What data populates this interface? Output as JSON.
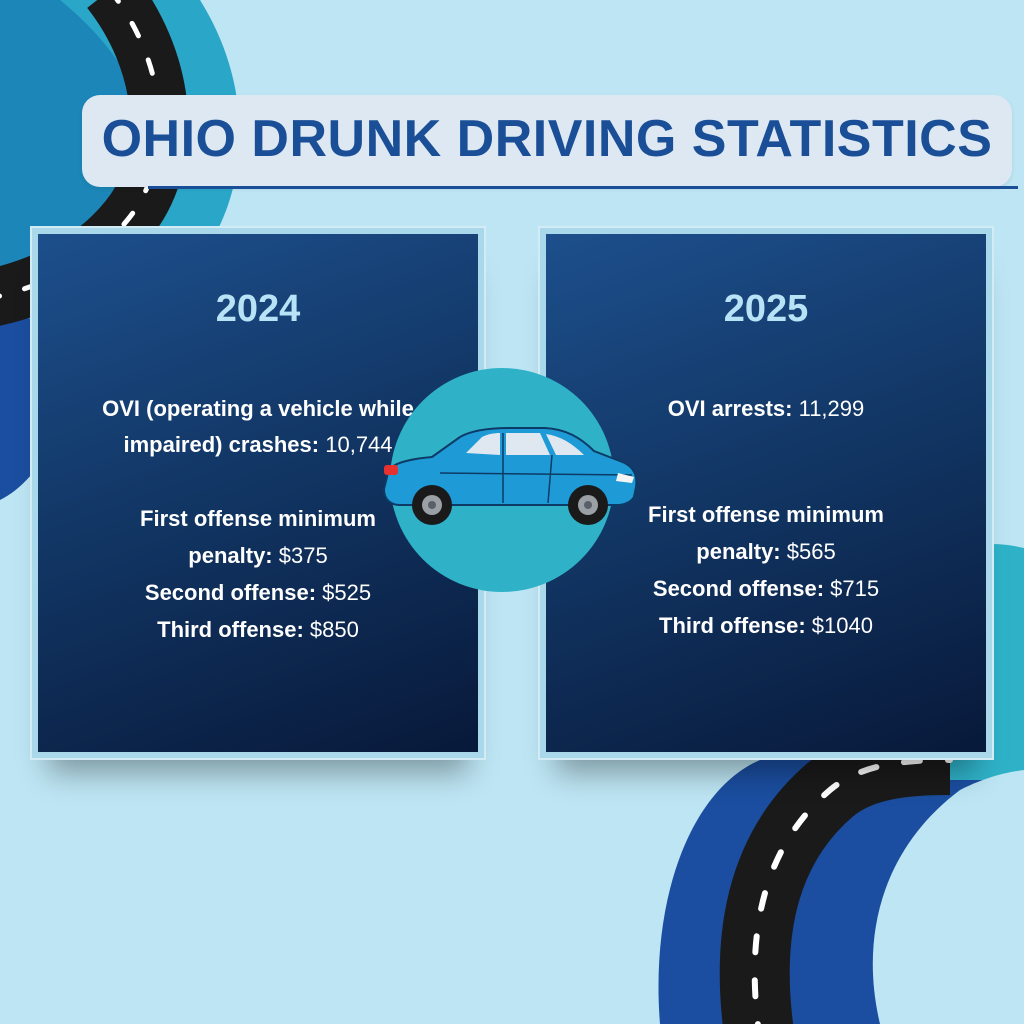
{
  "title": "OHIO DRUNK DRIVING STATISTICS",
  "colors": {
    "background": "#bde5f3",
    "title_text": "#1a4e96",
    "panel_dark": "#0c2448",
    "year_text": "#b8e3f7",
    "circle": "#2fb2c8",
    "car_body": "#1e9bd7",
    "road": "#1a1a1a"
  },
  "panels": [
    {
      "year": "2024",
      "lines": [
        {
          "label": "OVI (operating a vehicle while",
          "value": ""
        },
        {
          "label": "impaired) crashes:",
          "value": "10,744"
        },
        {
          "label": "First offense minimum",
          "value": ""
        },
        {
          "label": "penalty:",
          "value": "$375"
        },
        {
          "label": "Second offense:",
          "value": "$525"
        },
        {
          "label": "Third offense:",
          "value": "$850"
        }
      ]
    },
    {
      "year": "2025",
      "lines": [
        {
          "label": "OVI arrests:",
          "value": "11,299"
        },
        {
          "label": "First offense minimum",
          "value": ""
        },
        {
          "label": "penalty:",
          "value": "$565"
        },
        {
          "label": "Second offense:",
          "value": "$715"
        },
        {
          "label": "Third offense:",
          "value": "$1040"
        }
      ]
    }
  ],
  "icons": {
    "car": "car-icon",
    "road": "road-icon"
  }
}
